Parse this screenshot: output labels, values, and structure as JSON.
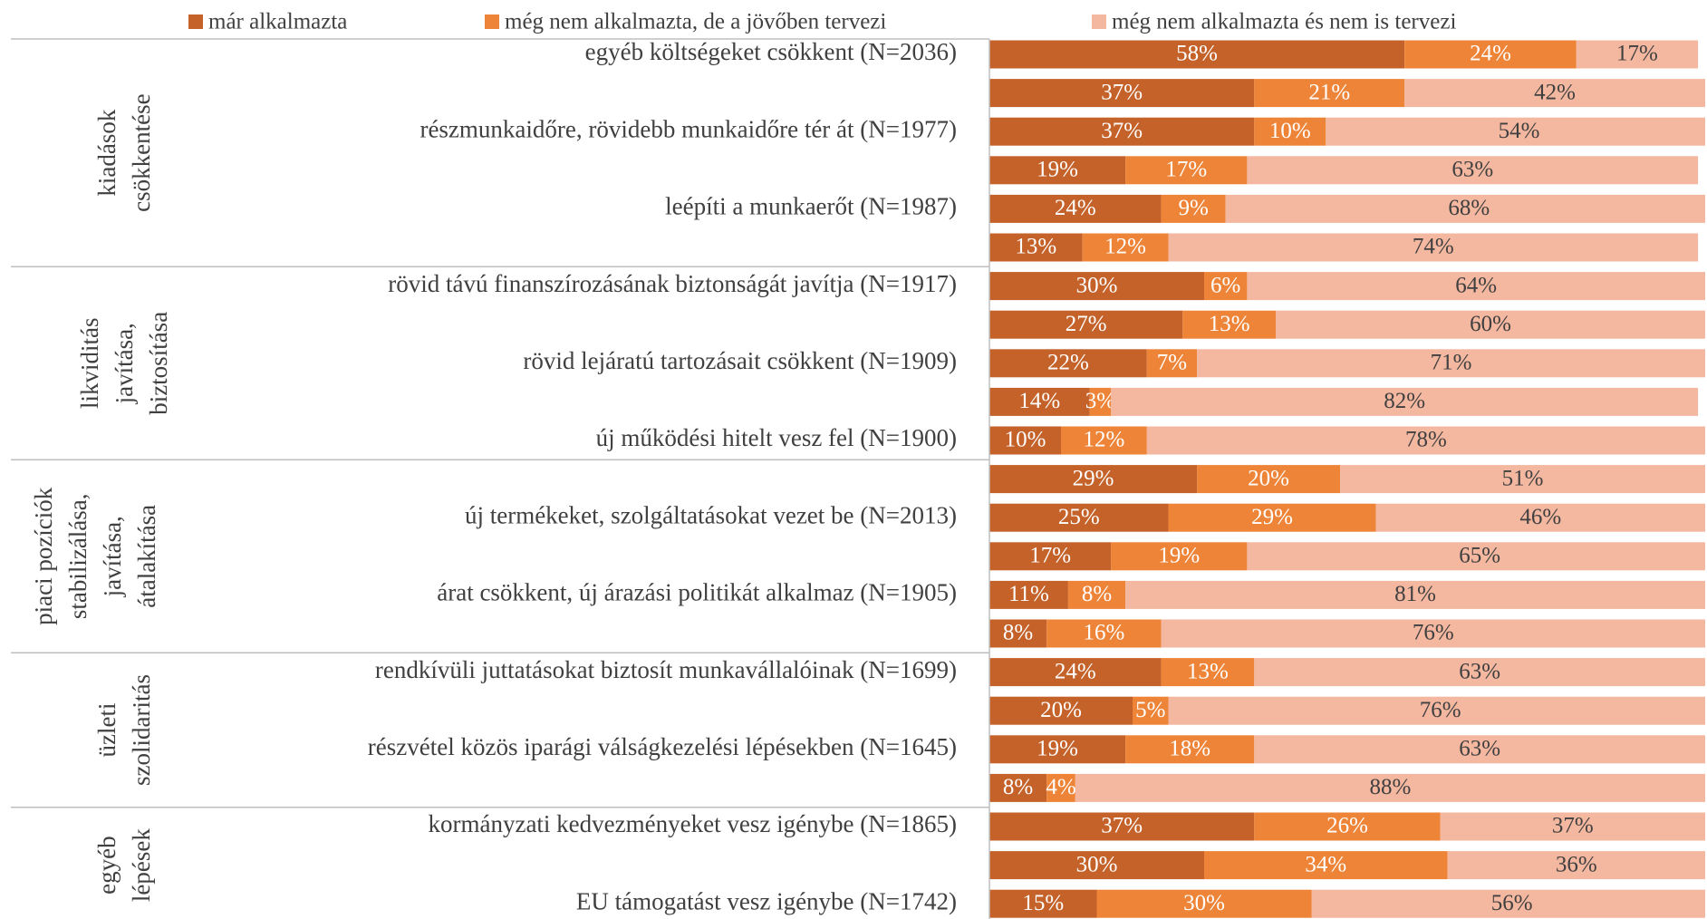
{
  "chart_data": {
    "type": "stacked_bar_horizontal",
    "categories": [
      "egyéb költségeket csökkent (N=2036)",
      null,
      "részmunkaidőre, rövidebb munkaidőre tér át (N=1977)",
      null,
      "leépíti a munkaerőt (N=1987)",
      null,
      "rövid távú finanszírozásának biztonságát javítja (N=1917)",
      null,
      "rövid lejáratú tartozásait csökkent (N=1909)",
      null,
      "új működési hitelt vesz fel (N=1900)",
      null,
      "új termékeket, szolgáltatásokat vezet be (N=2013)",
      null,
      "árat csökkent, új árazási politikát alkalmaz (N=1905)",
      null,
      "rendkívüli juttatásokat biztosít munkavállalóinak (N=1699)",
      null,
      "részvétel közös iparági válságkezelési lépésekben (N=1645)",
      null,
      "kormányzati kedvezményeket vesz igénybe (N=1865)",
      null,
      "EU támogatást vesz igénybe (N=1742)"
    ],
    "groups": [
      {
        "lines": [
          "kiadások",
          "csökkentése"
        ],
        "rows": [
          0,
          5
        ]
      },
      {
        "lines": [
          "likviditás",
          "javítása,",
          "biztosítása"
        ],
        "rows": [
          6,
          10
        ]
      },
      {
        "lines": [
          "piaci pozíciók",
          "stabilizálása,",
          "javítása,",
          "átalakítása"
        ],
        "rows": [
          11,
          15
        ]
      },
      {
        "lines": [
          "üzleti",
          "szolidaritás"
        ],
        "rows": [
          16,
          19
        ]
      },
      {
        "lines": [
          "egyéb",
          "lépések"
        ],
        "rows": [
          20,
          22
        ]
      }
    ],
    "xlim": [
      0,
      100
    ],
    "legend": "top",
    "series": [
      {
        "name": "már alkalmazta",
        "color": "#c4622a",
        "values": [
          58,
          37,
          37,
          19,
          24,
          13,
          30,
          27,
          22,
          14,
          10,
          29,
          25,
          17,
          11,
          8,
          24,
          20,
          19,
          8,
          37,
          30,
          15
        ],
        "value_labels": [
          "58%",
          "37%",
          "37%",
          "19%",
          "24%",
          "13%",
          "30%",
          "27%",
          "22%",
          "14%",
          "10%",
          "29%",
          "25%",
          "17%",
          "11%",
          "8%",
          "24%",
          "20%",
          "19%",
          "8%",
          "37%",
          "30%",
          "15%"
        ]
      },
      {
        "name": "még nem alkalmazta, de a jövőben tervezi",
        "color": "#ee8437",
        "values": [
          24,
          21,
          10,
          17,
          9,
          12,
          6,
          13,
          7,
          3,
          12,
          20,
          29,
          19,
          8,
          16,
          13,
          5,
          18,
          4,
          26,
          34,
          30
        ],
        "value_labels": [
          "24%",
          "21%",
          "10%",
          "17%",
          "9%",
          "12%",
          "6%",
          "13%",
          "7%",
          "3%",
          "12%",
          "20%",
          "29%",
          "19%",
          "8%",
          "16%",
          "13%",
          "5%",
          "18%",
          "4%",
          "26%",
          "34%",
          "30%"
        ]
      },
      {
        "name": "még nem alkalmazta és nem is tervezi",
        "color": "#f4b7a0",
        "values": [
          17,
          42,
          54,
          63,
          68,
          74,
          64,
          60,
          71,
          82,
          78,
          51,
          46,
          65,
          81,
          76,
          63,
          76,
          63,
          88,
          37,
          36,
          56
        ],
        "value_labels": [
          "17%",
          "42%",
          "54%",
          "63%",
          "68%",
          "74%",
          "64%",
          "60%",
          "71%",
          "82%",
          "78%",
          "51%",
          "46%",
          "65%",
          "81%",
          "76%",
          "63%",
          "76%",
          "63%",
          "88%",
          "37%",
          "36%",
          "56%"
        ]
      }
    ]
  }
}
